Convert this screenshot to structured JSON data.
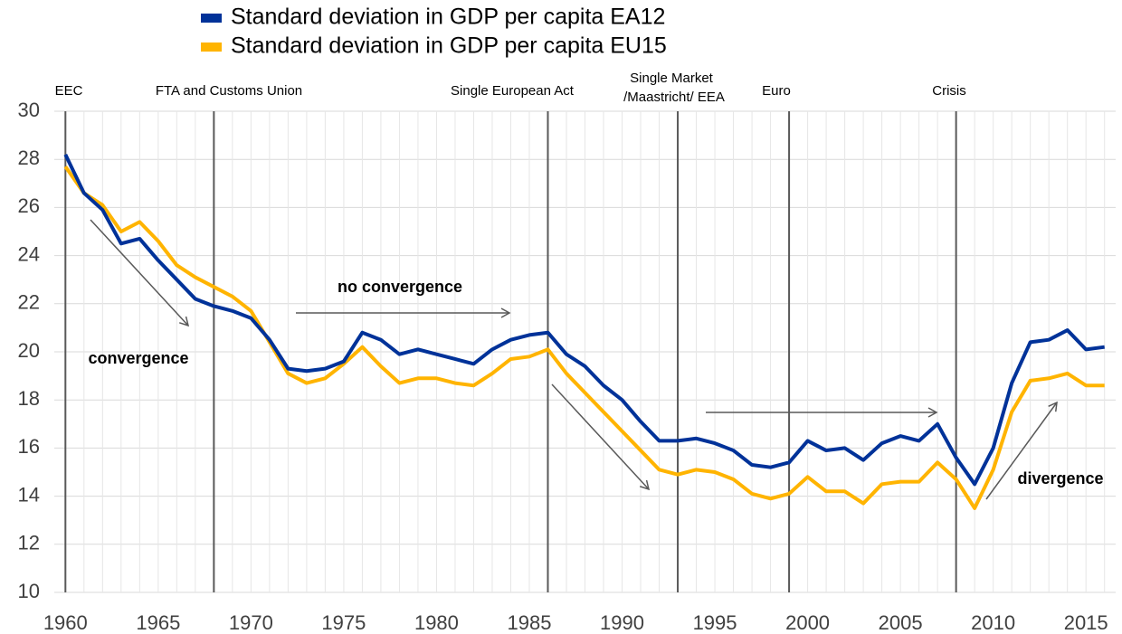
{
  "chart_data": {
    "type": "line",
    "x": [
      1960,
      1961,
      1962,
      1963,
      1964,
      1965,
      1966,
      1967,
      1968,
      1969,
      1970,
      1971,
      1972,
      1973,
      1974,
      1975,
      1976,
      1977,
      1978,
      1979,
      1980,
      1981,
      1982,
      1983,
      1984,
      1985,
      1986,
      1987,
      1988,
      1989,
      1990,
      1991,
      1992,
      1993,
      1994,
      1995,
      1996,
      1997,
      1998,
      1999,
      2000,
      2001,
      2002,
      2003,
      2004,
      2005,
      2006,
      2007,
      2008,
      2009,
      2010,
      2011,
      2012,
      2013,
      2014,
      2015,
      2016
    ],
    "series": [
      {
        "name": "Standard deviation in GDP per capita EA12",
        "color": "#003299",
        "values": [
          28.2,
          26.6,
          25.9,
          24.5,
          24.7,
          23.8,
          23.0,
          22.2,
          21.9,
          21.7,
          21.4,
          20.5,
          19.3,
          19.2,
          19.3,
          19.6,
          20.8,
          20.5,
          19.9,
          20.1,
          19.9,
          19.7,
          19.5,
          20.1,
          20.5,
          20.7,
          20.8,
          19.9,
          19.4,
          18.6,
          18.0,
          17.1,
          16.3,
          16.3,
          16.4,
          16.2,
          15.9,
          15.3,
          15.2,
          15.4,
          16.3,
          15.9,
          16.0,
          15.5,
          16.2,
          16.5,
          16.3,
          17.0,
          15.6,
          14.5,
          16.0,
          18.7,
          20.4,
          20.5,
          20.9,
          20.1,
          20.2
        ]
      },
      {
        "name": "Standard deviation in GDP per capita EU15",
        "color": "#FFB400",
        "values": [
          27.7,
          26.6,
          26.1,
          25.0,
          25.4,
          24.6,
          23.6,
          23.1,
          22.7,
          22.3,
          21.7,
          20.4,
          19.1,
          18.7,
          18.9,
          19.5,
          20.2,
          19.4,
          18.7,
          18.9,
          18.9,
          18.7,
          18.6,
          19.1,
          19.7,
          19.8,
          20.1,
          19.1,
          18.3,
          17.5,
          16.7,
          15.9,
          15.1,
          14.9,
          15.1,
          15.0,
          14.7,
          14.1,
          13.9,
          14.1,
          14.8,
          14.2,
          14.2,
          13.7,
          14.5,
          14.6,
          14.6,
          15.4,
          14.7,
          13.5,
          15.1,
          17.5,
          18.8,
          18.9,
          19.1,
          18.6,
          18.6
        ]
      }
    ],
    "xlim": [
      1959.4,
      2016.6
    ],
    "xticks": [
      1960,
      1965,
      1970,
      1975,
      1980,
      1985,
      1990,
      1995,
      2000,
      2005,
      2010,
      2015
    ],
    "ylim": [
      10,
      30
    ],
    "yticks": [
      10,
      12,
      14,
      16,
      18,
      20,
      22,
      24,
      26,
      28,
      30
    ],
    "grid": true,
    "events": [
      {
        "label": [
          "EEC"
        ],
        "year": 1960
      },
      {
        "label": [
          "FTA and Customs Union"
        ],
        "year": 1968
      },
      {
        "label": [
          "Single European Act"
        ],
        "year": 1986
      },
      {
        "label": [
          "Single Market",
          "/Maastricht/  EEA"
        ],
        "year": 1993
      },
      {
        "label": [
          "Euro"
        ],
        "year": 1999
      },
      {
        "label": [
          "Crisis"
        ],
        "year": 2008
      }
    ],
    "annotations": [
      "convergence",
      "no convergence",
      "divergence"
    ]
  }
}
